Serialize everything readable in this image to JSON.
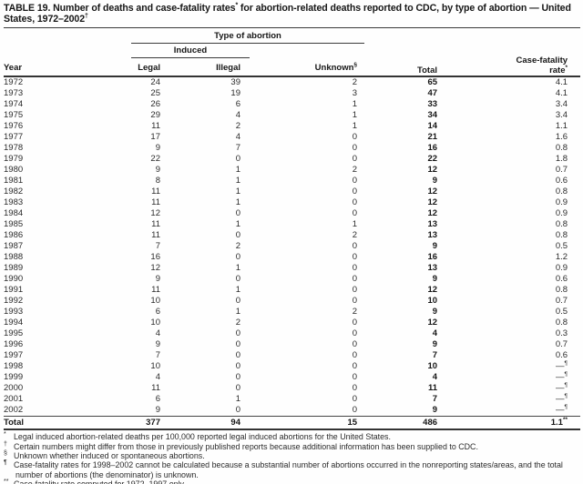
{
  "title": {
    "prefix": "TABLE 19. Number of deaths and case-fatality rates",
    "sup1": "*",
    "mid": " for abortion-related deaths reported to CDC, by type of abortion — United States, 1972–2002",
    "sup2": "†"
  },
  "columns": {
    "year": "Year",
    "type_of_abortion": "Type of abortion",
    "induced": "Induced",
    "legal": "Legal",
    "illegal": "Illegal",
    "unknown": "Unknown",
    "unknown_marker": "§",
    "total": "Total",
    "rate_line1": "Case-fatality",
    "rate_line2": "rate",
    "rate_marker": "*"
  },
  "table": {
    "rows": [
      {
        "year": "1972",
        "legal": "24",
        "illegal": "39",
        "unknown": "2",
        "total": "65",
        "rate": "4.1",
        "rate_sup": ""
      },
      {
        "year": "1973",
        "legal": "25",
        "illegal": "19",
        "unknown": "3",
        "total": "47",
        "rate": "4.1",
        "rate_sup": ""
      },
      {
        "year": "1974",
        "legal": "26",
        "illegal": "6",
        "unknown": "1",
        "total": "33",
        "rate": "3.4",
        "rate_sup": ""
      },
      {
        "year": "1975",
        "legal": "29",
        "illegal": "4",
        "unknown": "1",
        "total": "34",
        "rate": "3.4",
        "rate_sup": ""
      },
      {
        "year": "1976",
        "legal": "11",
        "illegal": "2",
        "unknown": "1",
        "total": "14",
        "rate": "1.1",
        "rate_sup": ""
      },
      {
        "year": "1977",
        "legal": "17",
        "illegal": "4",
        "unknown": "0",
        "total": "21",
        "rate": "1.6",
        "rate_sup": ""
      },
      {
        "year": "1978",
        "legal": "9",
        "illegal": "7",
        "unknown": "0",
        "total": "16",
        "rate": "0.8",
        "rate_sup": ""
      },
      {
        "year": "1979",
        "legal": "22",
        "illegal": "0",
        "unknown": "0",
        "total": "22",
        "rate": "1.8",
        "rate_sup": ""
      },
      {
        "year": "1980",
        "legal": "9",
        "illegal": "1",
        "unknown": "2",
        "total": "12",
        "rate": "0.7",
        "rate_sup": ""
      },
      {
        "year": "1981",
        "legal": "8",
        "illegal": "1",
        "unknown": "0",
        "total": "9",
        "rate": "0.6",
        "rate_sup": ""
      },
      {
        "year": "1982",
        "legal": "11",
        "illegal": "1",
        "unknown": "0",
        "total": "12",
        "rate": "0.8",
        "rate_sup": ""
      },
      {
        "year": "1983",
        "legal": "11",
        "illegal": "1",
        "unknown": "0",
        "total": "12",
        "rate": "0.9",
        "rate_sup": ""
      },
      {
        "year": "1984",
        "legal": "12",
        "illegal": "0",
        "unknown": "0",
        "total": "12",
        "rate": "0.9",
        "rate_sup": ""
      },
      {
        "year": "1985",
        "legal": "11",
        "illegal": "1",
        "unknown": "1",
        "total": "13",
        "rate": "0.8",
        "rate_sup": ""
      },
      {
        "year": "1986",
        "legal": "11",
        "illegal": "0",
        "unknown": "2",
        "total": "13",
        "rate": "0.8",
        "rate_sup": ""
      },
      {
        "year": "1987",
        "legal": "7",
        "illegal": "2",
        "unknown": "0",
        "total": "9",
        "rate": "0.5",
        "rate_sup": ""
      },
      {
        "year": "1988",
        "legal": "16",
        "illegal": "0",
        "unknown": "0",
        "total": "16",
        "rate": "1.2",
        "rate_sup": ""
      },
      {
        "year": "1989",
        "legal": "12",
        "illegal": "1",
        "unknown": "0",
        "total": "13",
        "rate": "0.9",
        "rate_sup": ""
      },
      {
        "year": "1990",
        "legal": "9",
        "illegal": "0",
        "unknown": "0",
        "total": "9",
        "rate": "0.6",
        "rate_sup": ""
      },
      {
        "year": "1991",
        "legal": "11",
        "illegal": "1",
        "unknown": "0",
        "total": "12",
        "rate": "0.8",
        "rate_sup": ""
      },
      {
        "year": "1992",
        "legal": "10",
        "illegal": "0",
        "unknown": "0",
        "total": "10",
        "rate": "0.7",
        "rate_sup": ""
      },
      {
        "year": "1993",
        "legal": "6",
        "illegal": "1",
        "unknown": "2",
        "total": "9",
        "rate": "0.5",
        "rate_sup": ""
      },
      {
        "year": "1994",
        "legal": "10",
        "illegal": "2",
        "unknown": "0",
        "total": "12",
        "rate": "0.8",
        "rate_sup": ""
      },
      {
        "year": "1995",
        "legal": "4",
        "illegal": "0",
        "unknown": "0",
        "total": "4",
        "rate": "0.3",
        "rate_sup": ""
      },
      {
        "year": "1996",
        "legal": "9",
        "illegal": "0",
        "unknown": "0",
        "total": "9",
        "rate": "0.7",
        "rate_sup": ""
      },
      {
        "year": "1997",
        "legal": "7",
        "illegal": "0",
        "unknown": "0",
        "total": "7",
        "rate": "0.6",
        "rate_sup": ""
      },
      {
        "year": "1998",
        "legal": "10",
        "illegal": "0",
        "unknown": "0",
        "total": "10",
        "rate": "—",
        "rate_sup": "¶"
      },
      {
        "year": "1999",
        "legal": "4",
        "illegal": "0",
        "unknown": "0",
        "total": "4",
        "rate": "—",
        "rate_sup": "¶"
      },
      {
        "year": "2000",
        "legal": "11",
        "illegal": "0",
        "unknown": "0",
        "total": "11",
        "rate": "—",
        "rate_sup": "¶"
      },
      {
        "year": "2001",
        "legal": "6",
        "illegal": "1",
        "unknown": "0",
        "total": "7",
        "rate": "—",
        "rate_sup": "¶"
      },
      {
        "year": "2002",
        "legal": "9",
        "illegal": "0",
        "unknown": "0",
        "total": "9",
        "rate": "—",
        "rate_sup": "¶"
      }
    ],
    "total_row": {
      "year": "Total",
      "legal": "377",
      "illegal": "94",
      "unknown": "15",
      "total": "486",
      "rate": "1.1",
      "rate_sup": "**",
      "bold": true
    }
  },
  "footnotes": [
    {
      "marker": "*",
      "text": "Legal induced abortion-related deaths per 100,000 reported legal induced abortions for the United States."
    },
    {
      "marker": "†",
      "text": "Certain numbers might differ from those in previously published reports because additional information has been supplied to CDC."
    },
    {
      "marker": "§",
      "text": "Unknown whether induced or spontaneous abortions."
    },
    {
      "marker": "¶",
      "text": "Case-fatality rates for 1998–2002 cannot be calculated because a substantial number of abortions occurred in the nonreporting states/areas, and the total number of abortions (the denominator) is unknown."
    },
    {
      "marker": "**",
      "text": "Case-fatality rate computed for 1972–1997 only."
    }
  ]
}
